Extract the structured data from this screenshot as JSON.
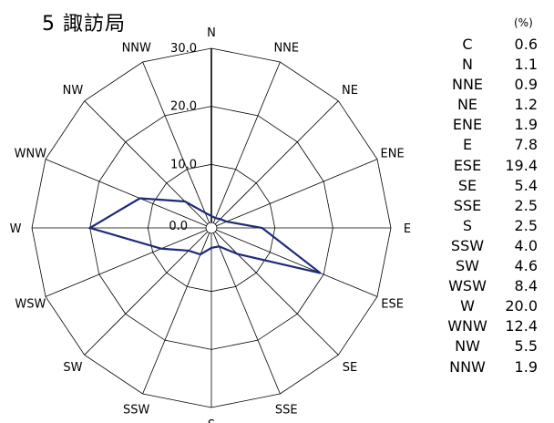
{
  "title": "5 諏訪局",
  "unit": "(%)",
  "chart_data": {
    "type": "radar",
    "title": "5 諏訪局",
    "unit": "(%)",
    "directions": [
      "N",
      "NNE",
      "NE",
      "ENE",
      "E",
      "ESE",
      "SE",
      "SSE",
      "S",
      "SSW",
      "SW",
      "WSW",
      "W",
      "WNW",
      "NW",
      "NNW"
    ],
    "series": [
      {
        "values": [
          1.1,
          0.9,
          1.2,
          1.9,
          7.8,
          19.4,
          5.4,
          2.5,
          2.5,
          4.0,
          4.6,
          8.4,
          20.0,
          12.4,
          5.5,
          1.9
        ]
      }
    ],
    "calm": {
      "label": "C",
      "value": 0.6
    },
    "rlim": [
      0,
      30
    ],
    "ticks": [
      {
        "value": 0,
        "label": "0.0"
      },
      {
        "value": 10,
        "label": "10.0"
      },
      {
        "value": 20,
        "label": "20.0"
      },
      {
        "value": 30,
        "label": "30.0"
      }
    ],
    "line_color": "#1f2a78"
  },
  "table": [
    {
      "dir": "C",
      "value": "0.6"
    },
    {
      "dir": "N",
      "value": "1.1"
    },
    {
      "dir": "NNE",
      "value": "0.9"
    },
    {
      "dir": "NE",
      "value": "1.2"
    },
    {
      "dir": "ENE",
      "value": "1.9"
    },
    {
      "dir": "E",
      "value": "7.8"
    },
    {
      "dir": "ESE",
      "value": "19.4"
    },
    {
      "dir": "SE",
      "value": "5.4"
    },
    {
      "dir": "SSE",
      "value": "2.5"
    },
    {
      "dir": "S",
      "value": "2.5"
    },
    {
      "dir": "SSW",
      "value": "4.0"
    },
    {
      "dir": "SW",
      "value": "4.6"
    },
    {
      "dir": "WSW",
      "value": "8.4"
    },
    {
      "dir": "W",
      "value": "20.0"
    },
    {
      "dir": "WNW",
      "value": "12.4"
    },
    {
      "dir": "NW",
      "value": "5.5"
    },
    {
      "dir": "NNW",
      "value": "1.9"
    }
  ]
}
